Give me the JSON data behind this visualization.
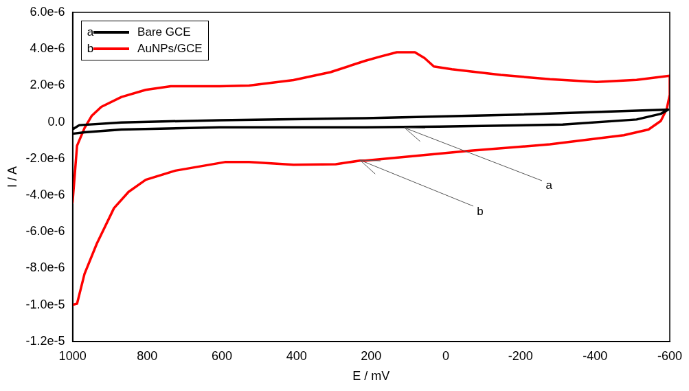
{
  "chart_data": {
    "type": "line",
    "xlabel": "E / mV",
    "ylabel": "I / A",
    "legend": "top left",
    "grid": false,
    "marker": "none",
    "line_style": "solid",
    "xlim": [
      1000,
      -600
    ],
    "xticks": [
      1000,
      800,
      600,
      400,
      200,
      0,
      -200,
      -400,
      -600
    ],
    "ylim": [
      -1.2e-05,
      6e-06
    ],
    "yticks": [
      {
        "value": 6e-06,
        "label": "6.0e-6"
      },
      {
        "value": 4e-06,
        "label": "4.0e-6"
      },
      {
        "value": 2e-06,
        "label": "2.0e-6"
      },
      {
        "value": 0,
        "label": "0.0"
      },
      {
        "value": -2e-06,
        "label": "-2.0e-6"
      },
      {
        "value": -4e-06,
        "label": "-4.0e-6"
      },
      {
        "value": -6e-06,
        "label": "-6.0e-6"
      },
      {
        "value": -8e-06,
        "label": "-8.0e-6"
      },
      {
        "value": -1e-05,
        "label": "-1.0e-5"
      },
      {
        "value": -1.2e-05,
        "label": "-1.2e-5"
      }
    ],
    "series": [
      {
        "name": "Bare GCE",
        "color": "#000000",
        "x": [
          1000,
          982,
          869,
          606,
          216,
          -180,
          -596,
          -576,
          -511,
          -313,
          18,
          216,
          606,
          869,
          968,
          1000
        ],
        "values": [
          -4e-07,
          -1.7e-07,
          -2e-08,
          1e-07,
          2.1e-07,
          4e-07,
          6.8e-07,
          4.5e-07,
          1.4e-07,
          -1.4e-07,
          -2.5e-07,
          -2.9e-07,
          -2.9e-07,
          -4.1e-07,
          -5.6e-07,
          -6.4e-07
        ]
      },
      {
        "name": "AuNPs/GCE",
        "color": "#ff0000",
        "x": [
          1000,
          988,
          968,
          949,
          923,
          869,
          804,
          737,
          606,
          527,
          408,
          309,
          216,
          176,
          131,
          83,
          57,
          32,
          -16,
          -147,
          -279,
          -404,
          -511,
          -600,
          -600,
          -592,
          -576,
          -543,
          -477,
          -279,
          -67,
          216,
          230,
          295,
          408,
          527,
          592,
          725,
          804,
          850,
          889,
          935,
          968,
          988,
          1000
        ],
        "values": [
          -4.4e-06,
          -1.3e-06,
          -3.3e-07,
          3.3e-07,
          8.3e-07,
          1.37e-06,
          1.76e-06,
          1.96e-06,
          1.96e-06,
          2e-06,
          2.3e-06,
          2.73e-06,
          3.35e-06,
          3.58e-06,
          3.82e-06,
          3.82e-06,
          3.5e-06,
          3.04e-06,
          2.89e-06,
          2.58e-06,
          2.34e-06,
          2.19e-06,
          2.31e-06,
          2.53e-06,
          1.49e-06,
          7.2e-07,
          6e-08,
          -4.1e-07,
          -7.2e-07,
          -1.22e-06,
          -1.57e-06,
          -2.11e-06,
          -2.11e-06,
          -2.31e-06,
          -2.34e-06,
          -2.19e-06,
          -2.19e-06,
          -2.66e-06,
          -3.16e-06,
          -3.82e-06,
          -4.71e-06,
          -6.65e-06,
          -8.31e-06,
          -9.94e-06,
          -1e-05
        ]
      }
    ],
    "annotations": [
      {
        "text": "a",
        "x": 110,
        "y": -3e-07
      },
      {
        "text": "b",
        "x": 230,
        "y": -2.1e-06
      }
    ]
  }
}
